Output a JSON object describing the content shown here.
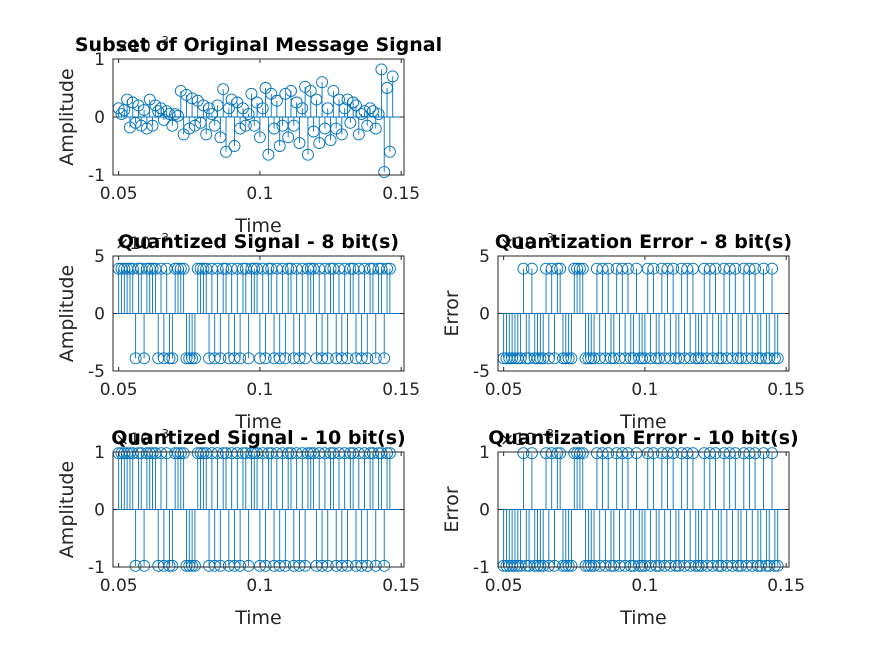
{
  "figure": {
    "background": "#ffffff",
    "axes_color": "#262626",
    "stem_color": "#0072bd"
  },
  "chart_data": [
    {
      "id": "orig",
      "type": "scatter",
      "style": "stem",
      "title": "Subset of Original Message Signal",
      "xlabel": "Time",
      "ylabel": "Amplitude",
      "exponent_label": "×10",
      "exponent": "-3",
      "xlim": [
        0.048,
        0.151
      ],
      "ylim": [
        -1,
        1
      ],
      "xticks": [
        0.05,
        0.1,
        0.15
      ],
      "xtick_labels": [
        "0.05",
        "0.1",
        "0.15"
      ],
      "yticks": [
        -1,
        0,
        1
      ],
      "ytick_labels": [
        "-1",
        "0",
        "1"
      ],
      "x_start": 0.05,
      "x_step": 0.001,
      "values": [
        0.15,
        0.05,
        0.12,
        0.3,
        -0.18,
        0.25,
        -0.1,
        0.2,
        -0.15,
        0.12,
        -0.2,
        0.3,
        -0.15,
        0.2,
        0.1,
        0.15,
        -0.05,
        0.1,
        0.05,
        -0.15,
        0.05,
        0.02,
        0.45,
        -0.3,
        0.38,
        -0.2,
        0.32,
        -0.15,
        0.28,
        -0.1,
        0.2,
        -0.3,
        0.15,
        0.05,
        -0.15,
        0.2,
        -0.35,
        0.48,
        -0.6,
        0.15,
        0.3,
        -0.5,
        0.25,
        -0.2,
        0.15,
        -0.15,
        0.05,
        0.4,
        -0.15,
        0.25,
        -0.35,
        0.15,
        0.5,
        -0.65,
        0.4,
        -0.2,
        0.28,
        -0.5,
        -0.15,
        0.4,
        -0.35,
        0.45,
        -0.15,
        0.25,
        -0.45,
        0.15,
        0.52,
        -0.65,
        0.45,
        -0.25,
        0.3,
        -0.45,
        0.6,
        -0.2,
        0.15,
        -0.4,
        0.45,
        -0.2,
        0.3,
        -0.3,
        0.15,
        0.3,
        -0.1,
        0.25,
        0.2,
        -0.3,
        0.05,
        0.1,
        -0.15,
        0.15,
        0.1,
        -0.2,
        0.05,
        0.82,
        -0.95,
        0.5,
        -0.6,
        0.7
      ]
    },
    {
      "id": "q8",
      "type": "scatter",
      "style": "stem",
      "title": "Quantized Signal - 8 bit(s)",
      "xlabel": "Time",
      "ylabel": "Amplitude",
      "exponent_label": "×10",
      "exponent": "-3",
      "xlim": [
        0.048,
        0.151
      ],
      "ylim": [
        -5,
        5
      ],
      "xticks": [
        0.05,
        0.1,
        0.15
      ],
      "xtick_labels": [
        "0.05",
        "0.1",
        "0.15"
      ],
      "yticks": [
        -5,
        0,
        5
      ],
      "ytick_labels": [
        "-5",
        "0",
        "5"
      ],
      "x_start": 0.05,
      "x_step": 0.001,
      "signs": "++++++-++-++++-+-+--++++----++++-+-+-++-+-+-++-+++-+-++-+-+-++-+-+-+++-+-+-++-+-+-++-+-+-++-++-++",
      "amplitude": 3.9
    },
    {
      "id": "e8",
      "type": "scatter",
      "style": "stem",
      "title": "Quantization Error - 8 bit(s)",
      "xlabel": "Time",
      "ylabel": "Error",
      "exponent_label": "×10",
      "exponent": "-3",
      "xlim": [
        0.048,
        0.151
      ],
      "ylim": [
        -5,
        5
      ],
      "xticks": [
        0.05,
        0.1,
        0.15
      ],
      "xtick_labels": [
        "0.05",
        "0.1",
        "0.15"
      ],
      "yticks": [
        -5,
        0,
        5
      ],
      "ytick_labels": [
        "-5",
        "0",
        "5"
      ],
      "x_start": 0.05,
      "x_step": 0.001,
      "signs": "-------+--+----+-+-++----++++----+-+-+--+-+-+--+---+-+--+-+-+--+-+-+---+-+-+--+-+-+--+-+-+--+--+--",
      "amplitude": 3.9
    },
    {
      "id": "q10",
      "type": "scatter",
      "style": "stem",
      "title": "Quantized Signal - 10 bit(s)",
      "xlabel": "Time",
      "ylabel": "Amplitude",
      "exponent_label": "×10",
      "exponent": "-3",
      "xlim": [
        0.048,
        0.151
      ],
      "ylim": [
        -1,
        1
      ],
      "xticks": [
        0.05,
        0.1,
        0.15
      ],
      "xtick_labels": [
        "0.05",
        "0.1",
        "0.15"
      ],
      "yticks": [
        -1,
        0,
        1
      ],
      "ytick_labels": [
        "-1",
        "0",
        "1"
      ],
      "x_start": 0.05,
      "x_step": 0.001,
      "signs": "++++++-++-++++-+-+--++++----++++-+-+-++-+-+-++-+++-+-++-+-+-++-+-+-+++-+-+-++-+-+-++-+-+-++-++-++",
      "amplitude": 0.98
    },
    {
      "id": "e10",
      "type": "scatter",
      "style": "stem",
      "title": "Quantization Error - 10 bit(s)",
      "xlabel": "Time",
      "ylabel": "Error",
      "exponent_label": "×10",
      "exponent": "-3",
      "xlim": [
        0.048,
        0.151
      ],
      "ylim": [
        -1,
        1
      ],
      "xticks": [
        0.05,
        0.1,
        0.15
      ],
      "xtick_labels": [
        "0.05",
        "0.1",
        "0.15"
      ],
      "yticks": [
        -1,
        0,
        1
      ],
      "ytick_labels": [
        "-1",
        "0",
        "1"
      ],
      "x_start": 0.05,
      "x_step": 0.001,
      "signs": "-------+--+----+-+-++----++++----+-+-+--+-+-+--+---+-+--+-+-+--+-+-+---+-+-+--+-+-+--+-+-+--+--+--",
      "amplitude": 0.98
    }
  ]
}
